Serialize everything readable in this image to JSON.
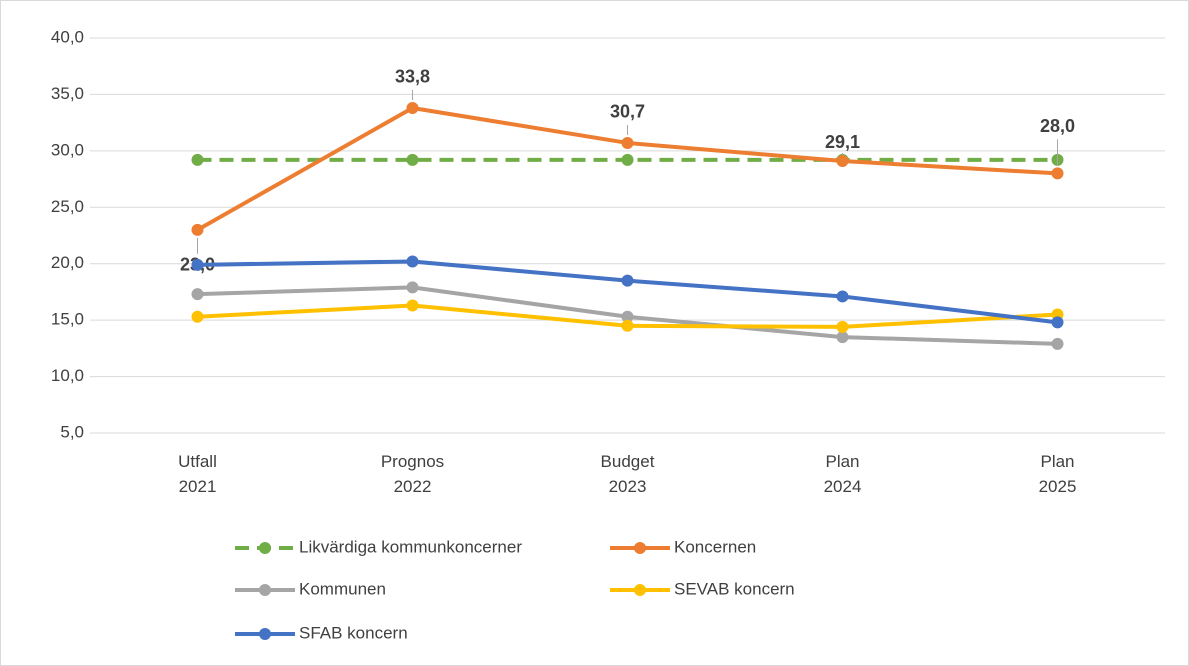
{
  "chart_data": {
    "type": "line",
    "categories": [
      [
        "Utfall",
        "2021"
      ],
      [
        "Prognos",
        "2022"
      ],
      [
        "Budget",
        "2023"
      ],
      [
        "Plan",
        "2024"
      ],
      [
        "Plan",
        "2025"
      ]
    ],
    "ylim": [
      5,
      40
    ],
    "yticks": [
      {
        "value": 5,
        "label": "5,0"
      },
      {
        "value": 10,
        "label": "10,0"
      },
      {
        "value": 15,
        "label": "15,0"
      },
      {
        "value": 20,
        "label": "20,0"
      },
      {
        "value": 25,
        "label": "25,0"
      },
      {
        "value": 30,
        "label": "30,0"
      },
      {
        "value": 35,
        "label": "35,0"
      },
      {
        "value": 40,
        "label": "40,0"
      }
    ],
    "grid": true,
    "legend": "bottom",
    "series": [
      {
        "name": "Likvärdiga kommunkoncerner",
        "color": "#70ad47",
        "dashed": true,
        "values": [
          29.2,
          29.2,
          29.2,
          29.2,
          29.2
        ]
      },
      {
        "name": "Koncernen",
        "color": "#ed7d31",
        "values": [
          23.0,
          33.8,
          30.7,
          29.1,
          28.0
        ],
        "value_labels": [
          "23,0",
          "33,8",
          "30,7",
          "29,1",
          "28,0"
        ]
      },
      {
        "name": "Kommunen",
        "color": "#a5a5a5",
        "values": [
          17.3,
          17.9,
          15.3,
          13.5,
          12.9
        ]
      },
      {
        "name": "SEVAB koncern",
        "color": "#ffc000",
        "values": [
          15.3,
          16.3,
          14.5,
          14.4,
          15.5
        ]
      },
      {
        "name": "SFAB koncern",
        "color": "#4472c4",
        "values": [
          19.9,
          20.2,
          18.5,
          17.1,
          14.8
        ]
      }
    ]
  }
}
